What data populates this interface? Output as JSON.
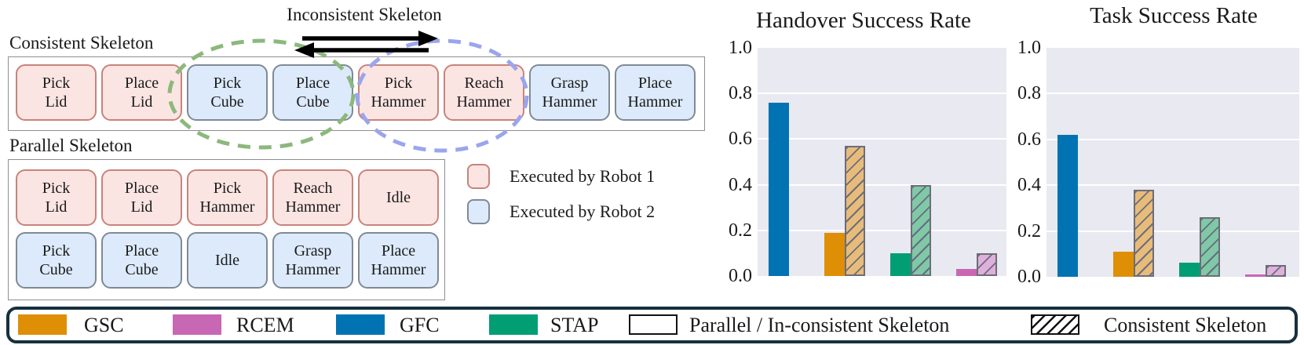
{
  "diagram": {
    "inconsistent_label": "Inconsistent Skeleton",
    "consistent_label": "Consistent Skeleton",
    "parallel_label": "Parallel Skeleton",
    "consistent_boxes": [
      {
        "lines": [
          "Pick",
          "Lid"
        ],
        "robot": 1
      },
      {
        "lines": [
          "Place",
          "Lid"
        ],
        "robot": 1
      },
      {
        "lines": [
          "Pick",
          "Cube"
        ],
        "robot": 2
      },
      {
        "lines": [
          "Place",
          "Cube"
        ],
        "robot": 2
      },
      {
        "lines": [
          "Pick",
          "Hammer"
        ],
        "robot": 1
      },
      {
        "lines": [
          "Reach",
          "Hammer"
        ],
        "robot": 1
      },
      {
        "lines": [
          "Grasp",
          "Hammer"
        ],
        "robot": 2
      },
      {
        "lines": [
          "Place",
          "Hammer"
        ],
        "robot": 2
      }
    ],
    "parallel_rows": [
      {
        "robot": 1,
        "boxes": [
          [
            "Pick",
            "Lid"
          ],
          [
            "Place",
            "Lid"
          ],
          [
            "Pick",
            "Hammer"
          ],
          [
            "Reach",
            "Hammer"
          ],
          [
            "Idle"
          ]
        ]
      },
      {
        "robot": 2,
        "boxes": [
          [
            "Pick",
            "Cube"
          ],
          [
            "Place",
            "Cube"
          ],
          [
            "Idle"
          ],
          [
            "Grasp",
            "Hammer"
          ],
          [
            "Place",
            "Hammer"
          ]
        ]
      }
    ],
    "robot_legend": [
      {
        "label": "Executed by Robot 1",
        "fill": "#fbe5e3",
        "border": "#c8837b"
      },
      {
        "label": "Executed by Robot 2",
        "fill": "#dceafb",
        "border": "#7f8a95"
      }
    ],
    "colors": {
      "robot1_fill": "#fbe5e3",
      "robot1_border": "#c8837b",
      "robot2_fill": "#dceafb",
      "robot2_border": "#7f8a95",
      "ellipse_green": "#8cb87c",
      "ellipse_blue": "#9aa5ec",
      "arrow_black": "#000000"
    }
  },
  "chart_data": [
    {
      "type": "bar",
      "title": "Handover Success Rate",
      "ylim": [
        0,
        1
      ],
      "yticks": [
        "0.0",
        "0.2",
        "0.4",
        "0.6",
        "0.8",
        "1.0"
      ],
      "grid": true,
      "legend_position": "bottom-shared",
      "methods": [
        "GFC",
        "GSC",
        "STAP",
        "RCEM"
      ],
      "series": [
        {
          "name": "Parallel / In-consistent Skeleton",
          "style": "solid",
          "values": [
            0.76,
            0.19,
            0.1,
            0.03
          ]
        },
        {
          "name": "Consistent Skeleton",
          "style": "hatched",
          "values": [
            null,
            0.57,
            0.4,
            0.1
          ]
        }
      ]
    },
    {
      "type": "bar",
      "title": "Task Success Rate",
      "ylim": [
        0,
        1
      ],
      "yticks": [
        "0.0",
        "0.2",
        "0.4",
        "0.6",
        "0.8",
        "1.0"
      ],
      "grid": true,
      "legend_position": "bottom-shared",
      "methods": [
        "GFC",
        "GSC",
        "STAP",
        "RCEM"
      ],
      "series": [
        {
          "name": "Parallel / In-consistent Skeleton",
          "style": "solid",
          "values": [
            0.62,
            0.11,
            0.06,
            0.01
          ]
        },
        {
          "name": "Consistent Skeleton",
          "style": "hatched",
          "values": [
            null,
            0.38,
            0.26,
            0.05
          ]
        }
      ]
    }
  ],
  "method_colors": {
    "GFC": {
      "solid": "#0173b2",
      "hatched": "#7db8d8"
    },
    "GSC": {
      "solid": "#de8f05",
      "hatched": "#e7bc7b"
    },
    "STAP": {
      "solid": "#029e73",
      "hatched": "#80c8a6"
    },
    "RCEM": {
      "solid": "#c867b4",
      "hatched": "#dfb0d9"
    }
  },
  "bottom_legend": {
    "items": [
      {
        "label": "GSC",
        "swatch": "color",
        "color": "#de8f05"
      },
      {
        "label": "RCEM",
        "swatch": "color",
        "color": "#c867b4"
      },
      {
        "label": "GFC",
        "swatch": "color",
        "color": "#0173b2"
      },
      {
        "label": "STAP",
        "swatch": "color",
        "color": "#029e73"
      },
      {
        "label": "Parallel / In-consistent Skeleton",
        "swatch": "white"
      },
      {
        "label": "Consistent Skeleton",
        "swatch": "hatched"
      }
    ]
  }
}
